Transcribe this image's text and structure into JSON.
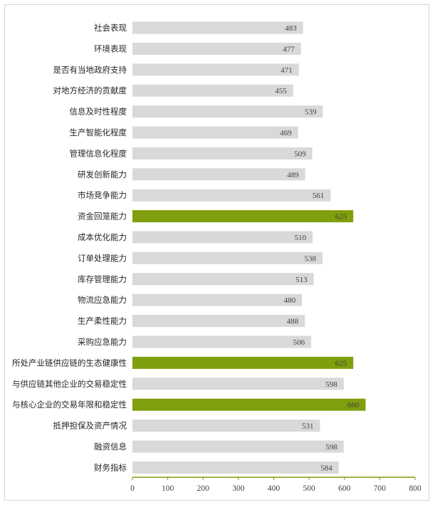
{
  "chart_data": {
    "type": "bar",
    "orientation": "horizontal",
    "categories": [
      "社会表现",
      "环境表现",
      "是否有当地政府支持",
      "对地方经济的贡献度",
      "信息及时性程度",
      "生产智能化程度",
      "管理信息化程度",
      "研发创新能力",
      "市场竞争能力",
      "资金回笼能力",
      "成本优化能力",
      "订单处理能力",
      "库存管理能力",
      "物流应急能力",
      "生产柔性能力",
      "采购应急能力",
      "所处产业链供应链的生态健康性",
      "与供应链其他企业的交易稳定性",
      "与核心企业的交易年限和稳定性",
      "抵押担保及资产情况",
      "融资信息",
      "财务指标"
    ],
    "values": [
      483,
      477,
      471,
      455,
      539,
      469,
      509,
      489,
      561,
      625,
      510,
      538,
      513,
      480,
      488,
      506,
      625,
      598,
      660,
      531,
      598,
      584
    ],
    "highlighted": [
      false,
      false,
      false,
      false,
      false,
      false,
      false,
      false,
      false,
      true,
      false,
      false,
      false,
      false,
      false,
      false,
      true,
      false,
      true,
      false,
      false,
      false
    ],
    "xlim": [
      0,
      800
    ],
    "xticks": [
      0,
      100,
      200,
      300,
      400,
      500,
      600,
      700,
      800
    ],
    "title": "",
    "xlabel": "",
    "ylabel": "",
    "grid": false,
    "colors": {
      "bar": "#d9d9d9",
      "highlight": "#7f9f0d",
      "axis": "#7f9f0d"
    }
  }
}
